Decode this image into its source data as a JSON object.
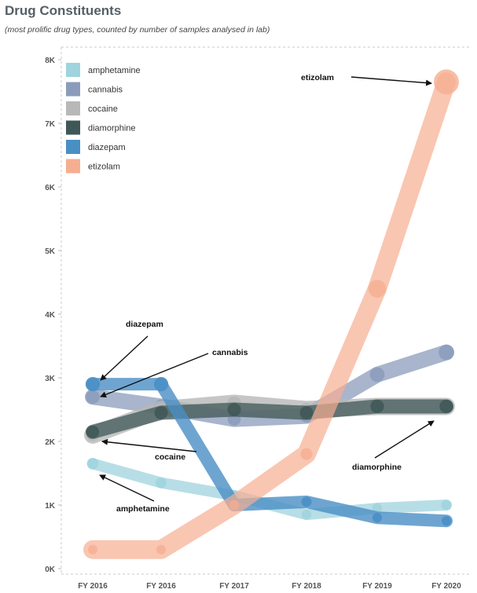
{
  "chart_data": {
    "type": "line",
    "title": "Drug Constituents",
    "subtitle": "(most prolific drug types, counted by number of samples analysed in lab)",
    "categories": [
      "FY 2016",
      "FY 2016",
      "FY 2017",
      "FY 2018",
      "FY 2019",
      "FY 2020"
    ],
    "y_ticks": [
      "0K",
      "1K",
      "2K",
      "3K",
      "4K",
      "5K",
      "6K",
      "7K",
      "8K"
    ],
    "ylim": [
      0,
      8000
    ],
    "legend_position": "top-left",
    "series": [
      {
        "name": "amphetamine",
        "color": "#9fd3de",
        "values": [
          1650,
          1350,
          1150,
          850,
          950,
          1000
        ]
      },
      {
        "name": "cannabis",
        "color": "#8b9cbb",
        "values": [
          2700,
          2550,
          2350,
          2400,
          3050,
          3400
        ]
      },
      {
        "name": "cocaine",
        "color": "#b8b8b8",
        "values": [
          2100,
          2500,
          2600,
          2500,
          2550,
          2550
        ]
      },
      {
        "name": "diamorphine",
        "color": "#3f5757",
        "values": [
          2150,
          2450,
          2500,
          2450,
          2550,
          2550
        ]
      },
      {
        "name": "diazepam",
        "color": "#4a8fc4",
        "values": [
          2900,
          2900,
          1000,
          1050,
          800,
          750
        ]
      },
      {
        "name": "etizolam",
        "color": "#f6ae91",
        "values": [
          300,
          300,
          1000,
          1800,
          4400,
          7650
        ]
      }
    ],
    "annotations": [
      {
        "text": "etizolam",
        "series": "etizolam",
        "point": 5
      },
      {
        "text": "diazepam",
        "series": "diazepam",
        "point": 0
      },
      {
        "text": "cannabis",
        "series": "cannabis",
        "point": 0
      },
      {
        "text": "cocaine",
        "series": "cocaine",
        "point": 0
      },
      {
        "text": "amphetamine",
        "series": "amphetamine",
        "point": 0
      },
      {
        "text": "diamorphine",
        "series": "diamorphine",
        "point": 5
      }
    ]
  }
}
